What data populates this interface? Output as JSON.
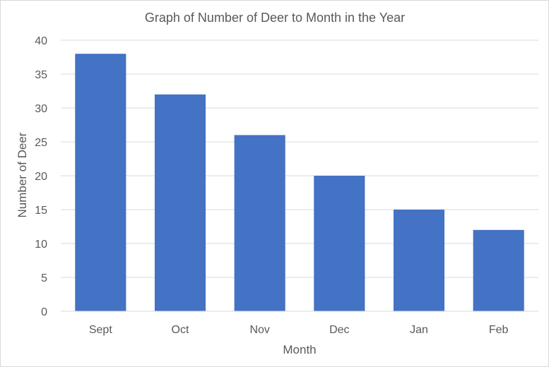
{
  "chart_data": {
    "type": "bar",
    "title": "Graph of Number of Deer to Month in the Year",
    "xlabel": "Month",
    "ylabel": "Number of Deer",
    "categories": [
      "Sept",
      "Oct",
      "Nov",
      "Dec",
      "Jan",
      "Feb"
    ],
    "values": [
      38,
      32,
      26,
      20,
      15,
      12
    ],
    "ylim": [
      0,
      40
    ],
    "yticks": [
      0,
      5,
      10,
      15,
      20,
      25,
      30,
      35,
      40
    ],
    "grid": true,
    "legend": "none",
    "bar_color": "#4472c4"
  }
}
